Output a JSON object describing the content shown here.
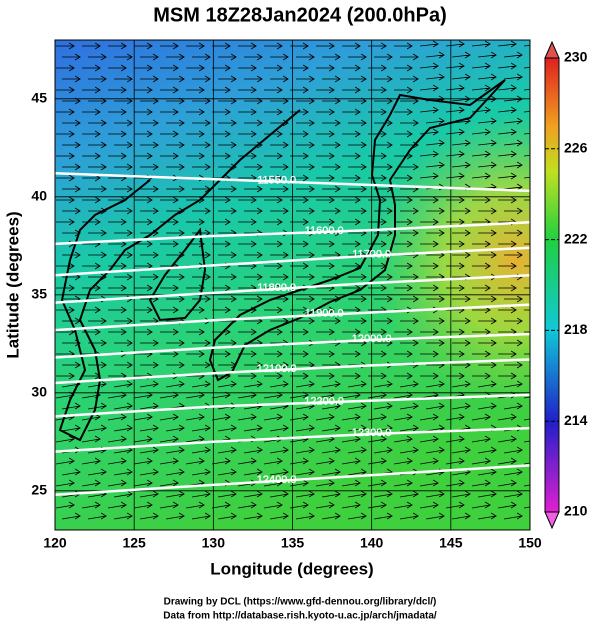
{
  "chart_data": {
    "type": "contour",
    "title": "MSM 18Z28Jan2024 (200.0hPa)",
    "xlabel": "Longitude (degrees)",
    "ylabel": "Latitude  (degrees)",
    "xlim": [
      120,
      150
    ],
    "ylim": [
      23,
      48
    ],
    "xticks": [
      120,
      125,
      130,
      135,
      140,
      145,
      150
    ],
    "yticks": [
      25,
      30,
      35,
      40,
      45
    ],
    "grid": true,
    "colorbar": {
      "lim": [
        210,
        230
      ],
      "ticks": [
        210,
        214,
        218,
        222,
        226,
        230
      ]
    },
    "contours": [
      {
        "level": {
          "value": 11550,
          "label": "11550.0"
        },
        "x": [
          120,
          130,
          140,
          150
        ],
        "y": [
          41.2,
          40.9,
          40.6,
          40.3
        ]
      },
      {
        "level": {
          "value": 11600,
          "label": "11600.0"
        },
        "x": [
          120,
          130,
          140,
          150
        ],
        "y": [
          37.6,
          38.0,
          38.3,
          38.7
        ]
      },
      {
        "level": {
          "value": 11700,
          "label": "11700.0"
        },
        "x": [
          120,
          130,
          140,
          150
        ],
        "y": [
          36.0,
          36.5,
          37.0,
          37.4
        ]
      },
      {
        "level": {
          "value": 11800,
          "label": "11800.0"
        },
        "x": [
          120,
          130,
          140,
          150
        ],
        "y": [
          34.6,
          35.1,
          35.6,
          36.0
        ]
      },
      {
        "level": {
          "value": 11900,
          "label": "11900.0"
        },
        "x": [
          120,
          130,
          140,
          150
        ],
        "y": [
          33.2,
          33.7,
          34.1,
          34.5
        ]
      },
      {
        "level": {
          "value": 12000,
          "label": "12000.0"
        },
        "x": [
          120,
          130,
          140,
          150
        ],
        "y": [
          31.8,
          32.3,
          32.7,
          33.0
        ]
      },
      {
        "level": {
          "value": 12100,
          "label": "12100.0"
        },
        "x": [
          120,
          130,
          140,
          150
        ],
        "y": [
          30.5,
          31.0,
          31.4,
          31.7
        ]
      },
      {
        "level": {
          "value": 12200,
          "label": "12200.0"
        },
        "x": [
          120,
          130,
          140,
          150
        ],
        "y": [
          28.8,
          29.3,
          29.6,
          29.9
        ]
      },
      {
        "level": {
          "value": 12300,
          "label": "12300.0"
        },
        "x": [
          120,
          130,
          140,
          150
        ],
        "y": [
          27.0,
          27.5,
          27.9,
          28.2
        ]
      },
      {
        "level": {
          "value": 12400,
          "label": "12400.0"
        },
        "x": [
          120,
          130,
          140,
          150
        ],
        "y": [
          24.8,
          25.3,
          25.8,
          26.3
        ]
      }
    ]
  },
  "notes": [
    "Drawing by DCL (https://www.gfd-dennou.org/library/dcl/)",
    "Data from http://database.rish.kyoto-u.ac.jp/arch/jmadata/"
  ]
}
